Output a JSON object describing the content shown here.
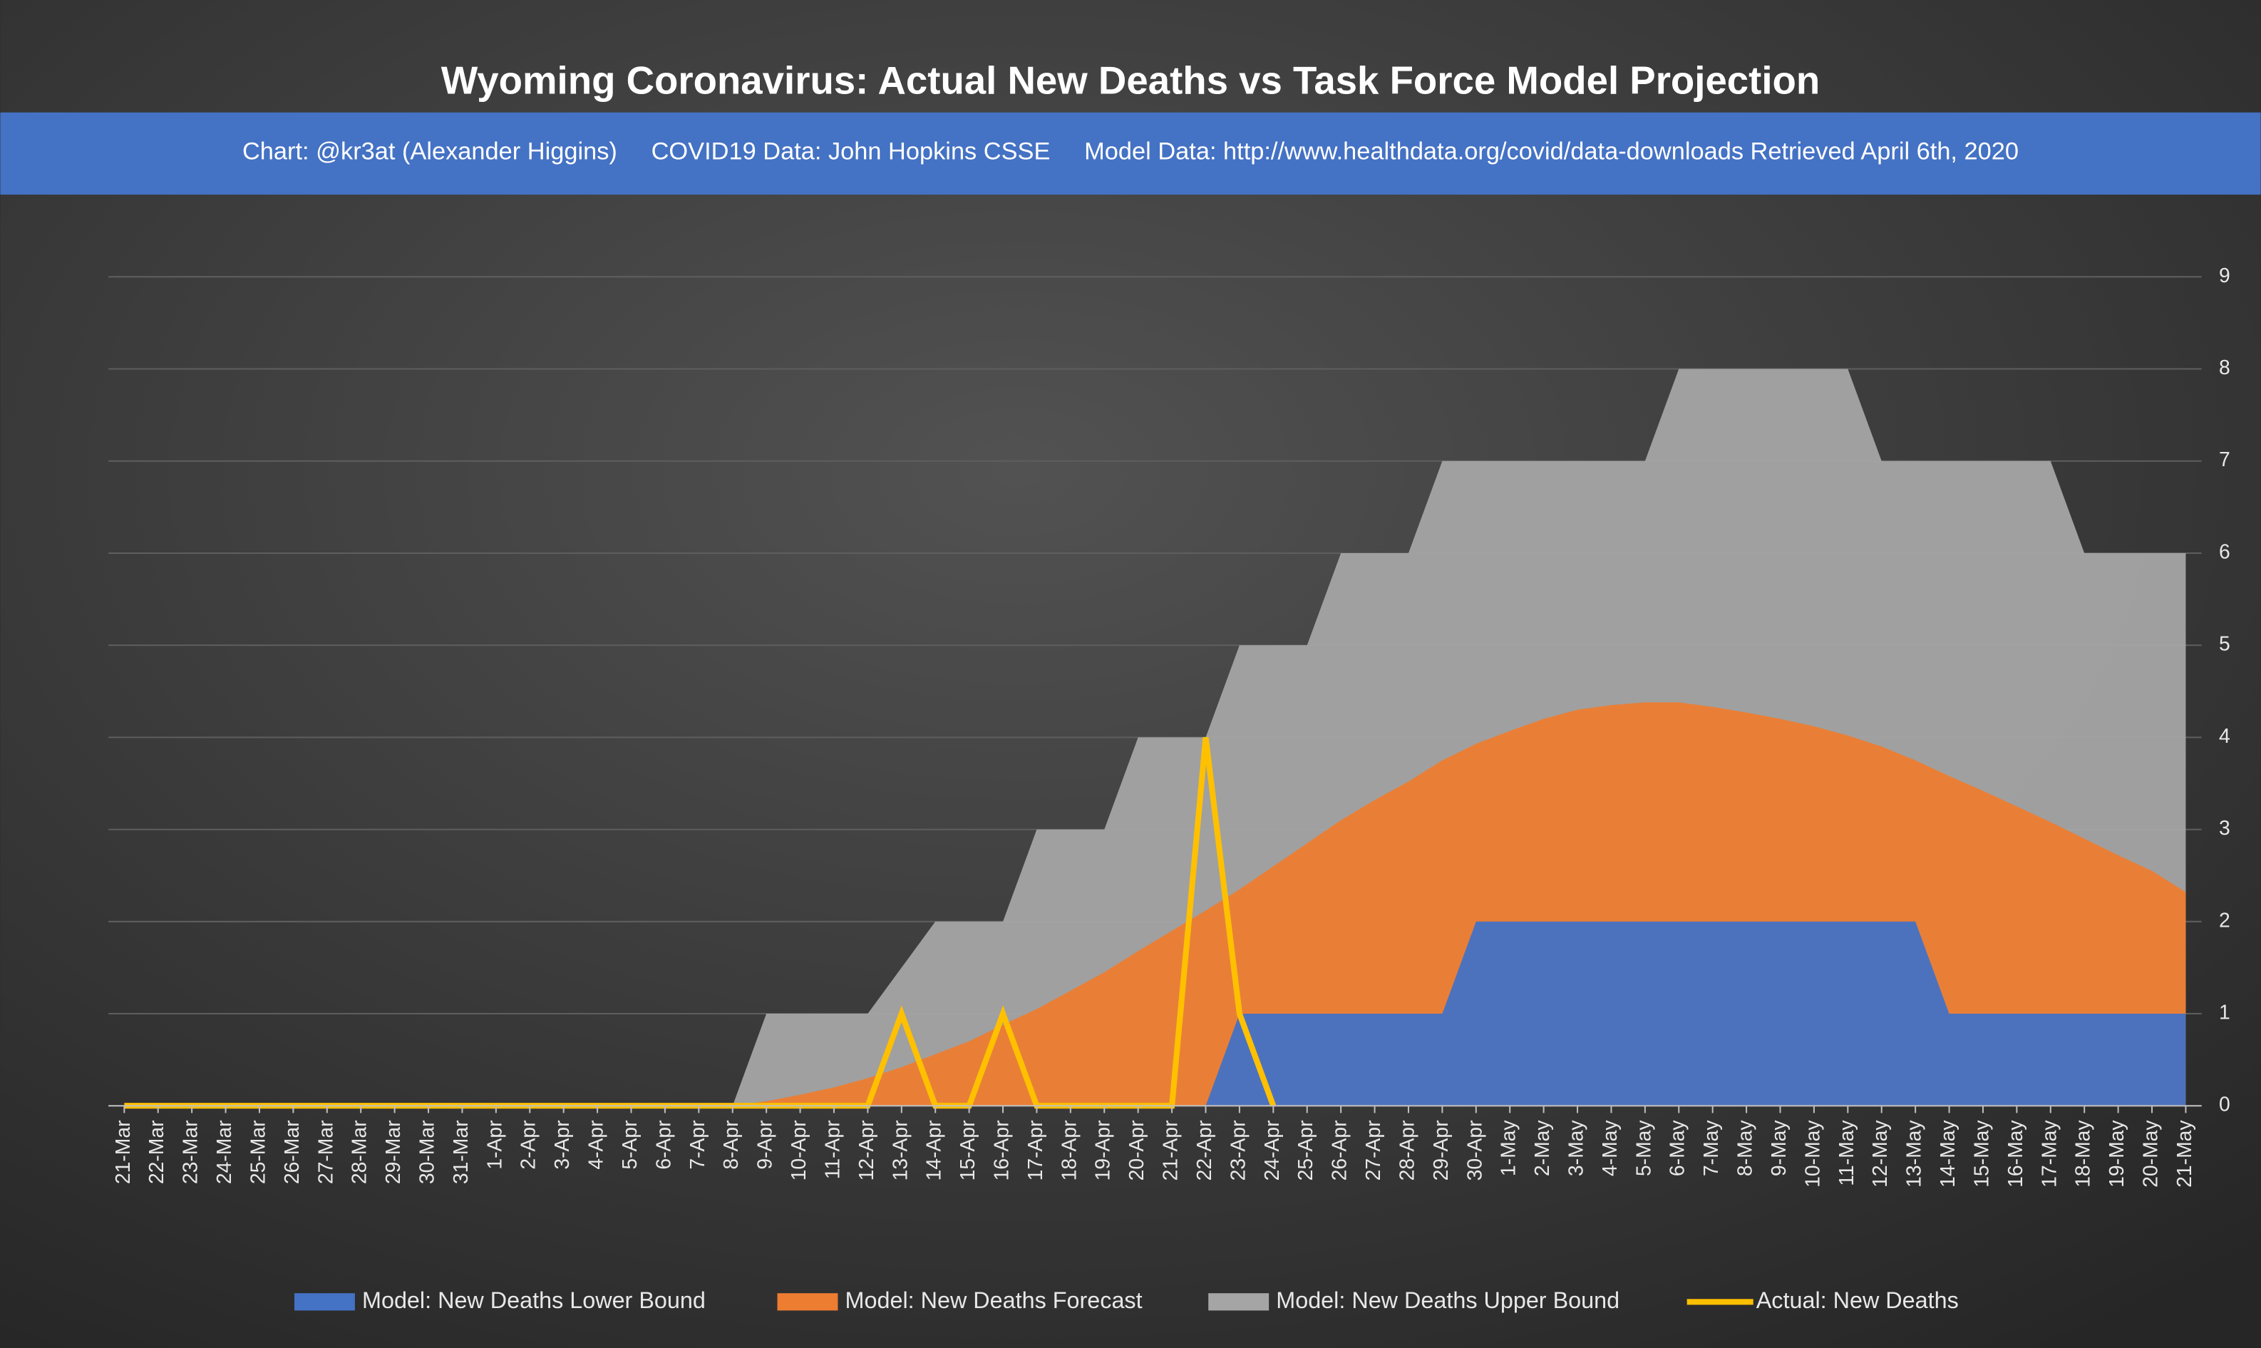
{
  "chart_data": {
    "type": "area",
    "title": "Wyoming Coronavirus: Actual New Deaths vs Task Force Model Projection",
    "subtitle": "Chart: @kr3at (Alexander Higgins)     COVID19 Data: John Hopkins CSSE     Model Data: http://www.healthdata.org/covid/data-downloads Retrieved April 6th, 2020",
    "categories": [
      "21-Mar",
      "22-Mar",
      "23-Mar",
      "24-Mar",
      "25-Mar",
      "26-Mar",
      "27-Mar",
      "28-Mar",
      "29-Mar",
      "30-Mar",
      "31-Mar",
      "1-Apr",
      "2-Apr",
      "3-Apr",
      "4-Apr",
      "5-Apr",
      "6-Apr",
      "7-Apr",
      "8-Apr",
      "9-Apr",
      "10-Apr",
      "11-Apr",
      "12-Apr",
      "13-Apr",
      "14-Apr",
      "15-Apr",
      "16-Apr",
      "17-Apr",
      "18-Apr",
      "19-Apr",
      "20-Apr",
      "21-Apr",
      "22-Apr",
      "23-Apr",
      "24-Apr",
      "25-Apr",
      "26-Apr",
      "27-Apr",
      "28-Apr",
      "29-Apr",
      "30-Apr",
      "1-May",
      "2-May",
      "3-May",
      "4-May",
      "5-May",
      "6-May",
      "7-May",
      "8-May",
      "9-May",
      "10-May",
      "11-May",
      "12-May",
      "13-May",
      "14-May",
      "15-May",
      "16-May",
      "17-May",
      "18-May",
      "19-May",
      "20-May",
      "21-May"
    ],
    "series": [
      {
        "name": "Model: New Deaths Lower Bound",
        "color": "#4472c4",
        "kind": "area",
        "values": [
          0,
          0,
          0,
          0,
          0,
          0,
          0,
          0,
          0,
          0,
          0,
          0,
          0,
          0,
          0,
          0,
          0,
          0,
          0,
          0,
          0,
          0,
          0,
          0,
          0,
          0,
          0,
          0,
          0,
          0,
          0,
          0,
          0,
          1,
          1,
          1,
          1,
          1,
          1,
          1,
          2,
          2,
          2,
          2,
          2,
          2,
          2,
          2,
          2,
          2,
          2,
          2,
          2,
          2,
          1,
          1,
          1,
          1,
          1,
          1,
          1,
          1
        ]
      },
      {
        "name": "Model: New Deaths Forecast",
        "color": "#ed7d31",
        "kind": "area",
        "values": [
          0,
          0,
          0,
          0,
          0,
          0,
          0,
          0,
          0,
          0,
          0,
          0,
          0,
          0,
          0,
          0,
          0,
          0,
          0,
          0.05,
          0.12,
          0.2,
          0.3,
          0.42,
          0.56,
          0.7,
          0.88,
          1.05,
          1.25,
          1.45,
          1.68,
          1.9,
          2.12,
          2.35,
          2.6,
          2.85,
          3.1,
          3.32,
          3.52,
          3.75,
          3.93,
          4.07,
          4.2,
          4.3,
          4.35,
          4.38,
          4.38,
          4.33,
          4.27,
          4.2,
          4.12,
          4.02,
          3.9,
          3.75,
          3.58,
          3.42,
          3.25,
          3.08,
          2.9,
          2.72,
          2.55,
          2.32
        ]
      },
      {
        "name": "Model: New Deaths Upper Bound",
        "color": "#a5a5a5",
        "kind": "area",
        "values": [
          0,
          0,
          0,
          0,
          0,
          0,
          0,
          0,
          0,
          0,
          0,
          0,
          0,
          0,
          0,
          0,
          0,
          0,
          0,
          1,
          1,
          1,
          1,
          1.5,
          2,
          2,
          2,
          3,
          3,
          3,
          4,
          4,
          4,
          5,
          5,
          5,
          6,
          6,
          6,
          7,
          7,
          7,
          7,
          7,
          7,
          7,
          8,
          8,
          8,
          8,
          8,
          8,
          7,
          7,
          7,
          7,
          7,
          7,
          6,
          6,
          6,
          6
        ]
      },
      {
        "name": "Actual: New Deaths",
        "color": "#ffc000",
        "kind": "line",
        "values": [
          0,
          0,
          0,
          0,
          0,
          0,
          0,
          0,
          0,
          0,
          0,
          0,
          0,
          0,
          0,
          0,
          0,
          0,
          0,
          0,
          0,
          0,
          0,
          1,
          0,
          0,
          1,
          0,
          0,
          0,
          0,
          0,
          4,
          1,
          0,
          null,
          null,
          null,
          null,
          null,
          null,
          null,
          null,
          null,
          null,
          null,
          null,
          null,
          null,
          null,
          null,
          null,
          null,
          null,
          null,
          null,
          null,
          null,
          null,
          null,
          null,
          null
        ]
      }
    ],
    "ylim": [
      0,
      9
    ],
    "yticks": [
      0,
      1,
      2,
      3,
      4,
      5,
      6,
      7,
      8,
      9
    ],
    "grid": true,
    "y_axis_side": "right",
    "legend": "bottom"
  }
}
